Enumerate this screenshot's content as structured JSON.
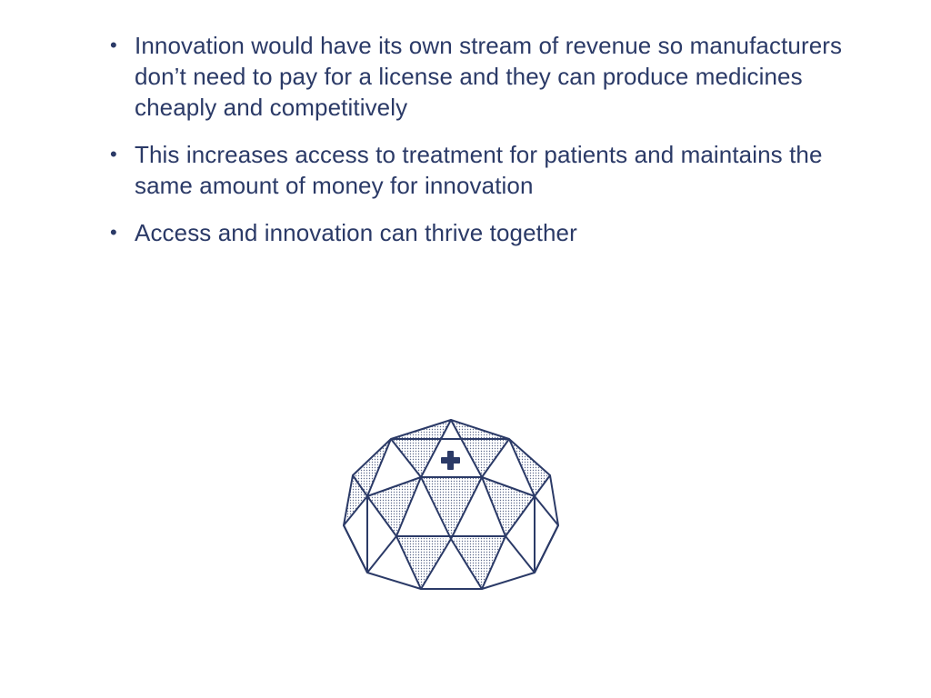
{
  "slide": {
    "bullets": [
      {
        "text": "Innovation would have its own stream of revenue so manufacturers don’t need to pay for a license and they can produce medicines cheaply and competitively"
      },
      {
        "text": "This increases access to treatment for patients and maintains the same amount of money for innovation"
      },
      {
        "text": "Access and innovation can thrive together"
      }
    ],
    "bullet_symbol": "•",
    "illustration": {
      "icon": "geodesic-dome-hospital-icon",
      "stroke_color": "#2b3a67",
      "fill_pattern": "dotted"
    }
  }
}
